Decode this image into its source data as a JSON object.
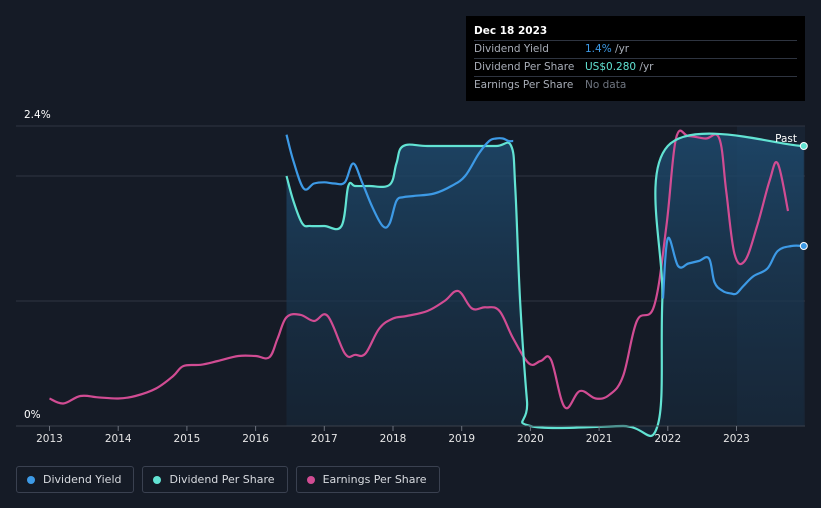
{
  "tooltip": {
    "date": "Dec 18 2023",
    "rows": [
      {
        "label": "Dividend Yield",
        "value": "1.4%",
        "suffix": " /yr"
      },
      {
        "label": "Dividend Per Share",
        "value": "US$0.280",
        "suffix": " /yr"
      },
      {
        "label": "Earnings Per Share",
        "value": "No data",
        "suffix": ""
      }
    ]
  },
  "legend": [
    {
      "label": "Dividend Yield",
      "color": "#3d9ae6"
    },
    {
      "label": "Dividend Per Share",
      "color": "#62e3d3"
    },
    {
      "label": "Earnings Per Share",
      "color": "#d14c93"
    }
  ],
  "chart_data": {
    "type": "line",
    "y_top_label": "2.4%",
    "y_bottom_label": "0%",
    "x_ticks": [
      "2013",
      "2014",
      "2015",
      "2016",
      "2017",
      "2018",
      "2019",
      "2020",
      "2021",
      "2022",
      "2023"
    ],
    "past_label": "Past",
    "xlim": [
      2012.6,
      2023.98
    ],
    "ylim": [
      0,
      2.4
    ],
    "grid": true,
    "series": [
      {
        "name": "Dividend Yield",
        "color": "#3d9ae6",
        "x": [
          2016.45,
          2016.55,
          2016.7,
          2016.85,
          2017.0,
          2017.15,
          2017.3,
          2017.42,
          2017.55,
          2017.7,
          2017.85,
          2017.95,
          2018.05,
          2018.15,
          2018.3,
          2018.6,
          2018.85,
          2019.05,
          2019.25,
          2019.4,
          2019.5,
          2019.6,
          2019.68,
          2019.75
        ],
        "values": [
          2.33,
          2.12,
          1.9,
          1.94,
          1.95,
          1.94,
          1.95,
          2.1,
          1.95,
          1.75,
          1.6,
          1.62,
          1.8,
          1.83,
          1.84,
          1.86,
          1.92,
          2.0,
          2.18,
          2.28,
          2.3,
          2.3,
          2.28,
          2.28
        ],
        "x2": [
          2021.93,
          2022.0,
          2022.15,
          2022.3,
          2022.45,
          2022.6,
          2022.68,
          2022.8,
          2022.92,
          2023.0,
          2023.1,
          2023.25,
          2023.45,
          2023.6,
          2023.8,
          2023.98
        ],
        "values2": [
          1.02,
          1.5,
          1.28,
          1.3,
          1.32,
          1.34,
          1.15,
          1.08,
          1.06,
          1.06,
          1.12,
          1.2,
          1.26,
          1.4,
          1.44,
          1.44
        ]
      },
      {
        "name": "Dividend Per Share",
        "color": "#62e3d3",
        "x": [
          2016.45,
          2016.55,
          2016.68,
          2016.8,
          2017.0,
          2017.25,
          2017.35,
          2017.45,
          2017.65,
          2017.95,
          2018.05,
          2018.15,
          2018.5,
          2019.0,
          2019.5,
          2019.72,
          2019.78,
          2019.85,
          2019.95,
          2020.0,
          2021.35,
          2021.85,
          2021.92,
          2022.0,
          2023.98
        ],
        "values": [
          2.0,
          1.8,
          1.62,
          1.6,
          1.6,
          1.6,
          1.92,
          1.92,
          1.92,
          1.93,
          2.1,
          2.24,
          2.24,
          2.24,
          2.24,
          2.24,
          1.9,
          1.0,
          0.2,
          0.0,
          0.0,
          0.0,
          1.0,
          2.24,
          2.24
        ]
      },
      {
        "name": "Earnings Per Share",
        "color": "#d14c93",
        "x": [
          2013.0,
          2013.2,
          2013.45,
          2013.7,
          2014.0,
          2014.25,
          2014.55,
          2014.8,
          2014.95,
          2015.2,
          2015.45,
          2015.75,
          2016.0,
          2016.2,
          2016.32,
          2016.45,
          2016.65,
          2016.85,
          2017.05,
          2017.3,
          2017.45,
          2017.6,
          2017.8,
          2018.0,
          2018.2,
          2018.5,
          2018.75,
          2018.95,
          2019.15,
          2019.35,
          2019.55,
          2019.75,
          2019.98,
          2020.15,
          2020.3,
          2020.5,
          2020.72,
          2020.95,
          2021.15,
          2021.35,
          2021.55,
          2021.8,
          2021.98,
          2022.12,
          2022.3,
          2022.55,
          2022.75,
          2022.85,
          2022.97,
          2023.12,
          2023.3,
          2023.48,
          2023.6,
          2023.75
        ],
        "values": [
          0.22,
          0.18,
          0.24,
          0.23,
          0.22,
          0.24,
          0.3,
          0.4,
          0.48,
          0.49,
          0.52,
          0.56,
          0.56,
          0.55,
          0.7,
          0.87,
          0.89,
          0.84,
          0.88,
          0.58,
          0.57,
          0.58,
          0.78,
          0.86,
          0.88,
          0.92,
          1.0,
          1.08,
          0.94,
          0.95,
          0.92,
          0.7,
          0.5,
          0.52,
          0.53,
          0.15,
          0.28,
          0.22,
          0.25,
          0.4,
          0.84,
          0.96,
          1.6,
          2.3,
          2.32,
          2.3,
          2.3,
          1.88,
          1.38,
          1.32,
          1.6,
          1.96,
          2.1,
          1.72
        ]
      }
    ]
  }
}
